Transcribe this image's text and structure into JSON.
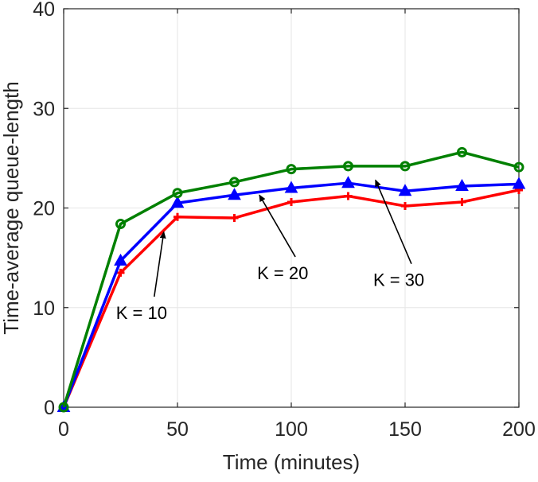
{
  "chart_data": {
    "type": "line",
    "title": "",
    "xlabel": "Time (minutes)",
    "ylabel": "Time-average queue-length",
    "xlim": [
      0,
      200
    ],
    "ylim": [
      0,
      40
    ],
    "xticks": [
      0,
      50,
      100,
      150,
      200
    ],
    "yticks": [
      0,
      10,
      20,
      30,
      40
    ],
    "xtick_labels": [
      "0",
      "50",
      "100",
      "150",
      "200"
    ],
    "ytick_labels": [
      "0",
      "10",
      "20",
      "30",
      "40"
    ],
    "grid": true,
    "legend": "none",
    "x": [
      0,
      25,
      50,
      75,
      100,
      125,
      150,
      175,
      200
    ],
    "series": [
      {
        "name": "K = 10",
        "color": "#ff0000",
        "marker": "plus",
        "values": [
          0,
          13.5,
          19.1,
          19.0,
          20.6,
          21.2,
          20.2,
          20.6,
          21.8
        ]
      },
      {
        "name": "K = 20",
        "color": "#0000ff",
        "marker": "triangle",
        "values": [
          0,
          14.7,
          20.5,
          21.3,
          22.0,
          22.5,
          21.7,
          22.2,
          22.4
        ]
      },
      {
        "name": "K = 30",
        "color": "#008000",
        "marker": "circle",
        "values": [
          0,
          18.4,
          21.5,
          22.6,
          23.9,
          24.2,
          24.2,
          25.6,
          24.1
        ]
      }
    ],
    "annotations": [
      {
        "text": "K = 10",
        "text_at": [
          23,
          9.5
        ],
        "arrow_to": [
          44,
          17.6
        ]
      },
      {
        "text": "K = 20",
        "text_at": [
          85,
          13.5
        ],
        "arrow_to": [
          86,
          21.3
        ]
      },
      {
        "text": "K = 30",
        "text_at": [
          136,
          12.8
        ],
        "arrow_to": [
          137,
          22.8
        ]
      }
    ]
  }
}
